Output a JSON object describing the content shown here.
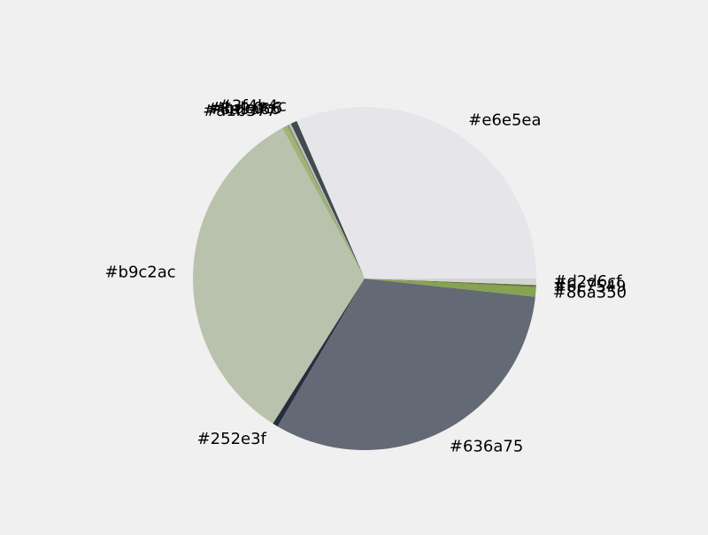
{
  "chart_data": {
    "type": "pie",
    "title": "",
    "start_angle_deg": 0,
    "direction": "counterclockwise",
    "slices": [
      {
        "label": "#e6e5ea",
        "color": "#e6e5ea",
        "value": 31.6
      },
      {
        "label": "#3f4b4c",
        "color": "#3f4b4c",
        "value": 0.6
      },
      {
        "label": "#bdc0c6",
        "color": "#bdc0c6",
        "value": 0.2
      },
      {
        "label": "#8a9a66",
        "color": "#8a9a66",
        "value": 0.2
      },
      {
        "label": "#a1b377",
        "color": "#a1b377",
        "value": 0.5
      },
      {
        "label": "#b9c2ac",
        "color": "#b9c2ac",
        "value": 33.2
      },
      {
        "label": "#252e3f",
        "color": "#252e3f",
        "value": 0.5
      },
      {
        "label": "#636a75",
        "color": "#636a75",
        "value": 31.9
      },
      {
        "label": "#86a350",
        "color": "#86a350",
        "value": 0.9
      },
      {
        "label": "#6c7549",
        "color": "#6c7549",
        "value": 0.2
      },
      {
        "label": "#d2d6cf",
        "color": "#d2d6cf",
        "value": 0.6
      }
    ]
  }
}
